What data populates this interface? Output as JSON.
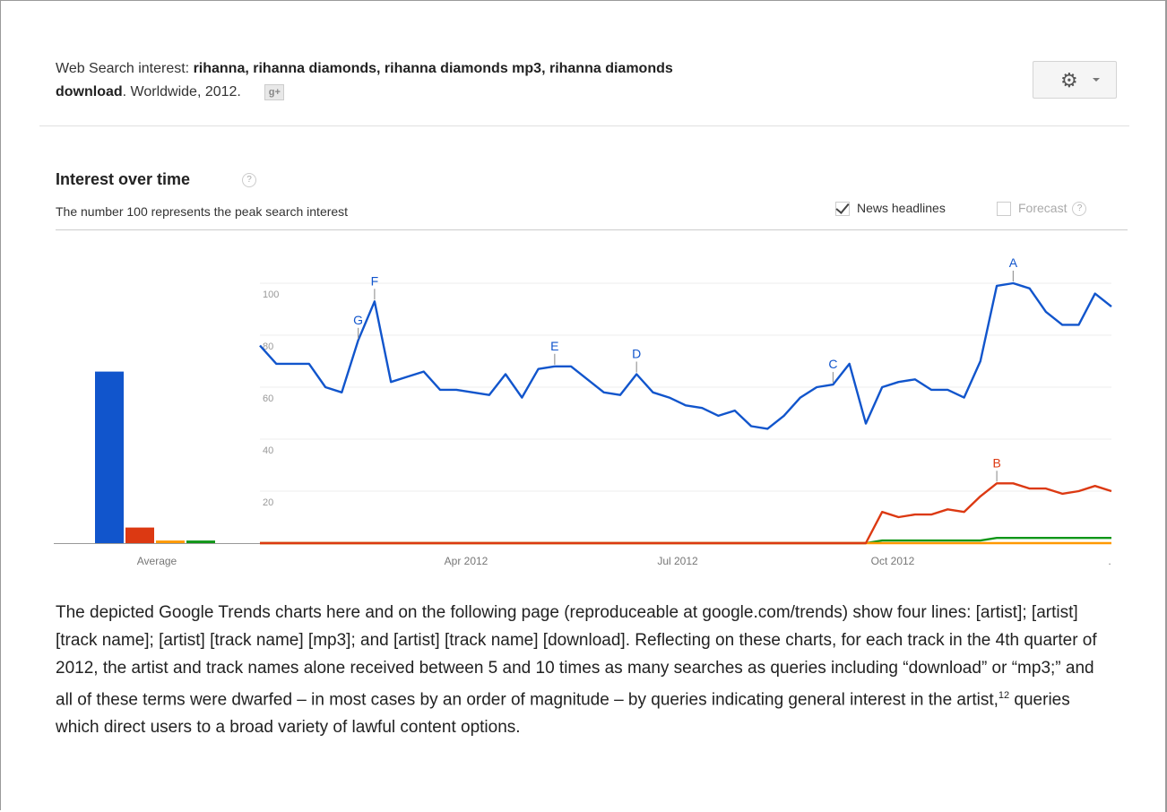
{
  "header": {
    "prefix": "Web Search interest: ",
    "terms": "rihanna, rihanna diamonds, rihanna diamonds mp3, rihanna diamonds",
    "terms2": "download",
    "suffix": ". Worldwide, 2012.",
    "gplus_icon": "g-plus-icon"
  },
  "settings_button": {
    "icon": "gear-icon"
  },
  "section": {
    "title": "Interest over time",
    "help": "?",
    "subtitle": "The number 100 represents the peak search interest"
  },
  "options": {
    "news_label": "News headlines",
    "news_checked": true,
    "forecast_label": "Forecast",
    "forecast_checked": false
  },
  "chart_data": {
    "type": "line",
    "ylim": [
      0,
      100
    ],
    "yticks": [
      "100",
      "80",
      "60",
      "40",
      "20"
    ],
    "xtick_labels": [
      "Average",
      "Apr 2012",
      "Jul 2012",
      "Oct 2012",
      "."
    ],
    "colors": [
      "#1155cc",
      "#dc3912",
      "#ff9900",
      "#109618"
    ],
    "averages": [
      66,
      6,
      1,
      1
    ],
    "series": [
      {
        "values": [
          76,
          69,
          69,
          69,
          60,
          58,
          78,
          93,
          62,
          64,
          66,
          59,
          59,
          58,
          57,
          65,
          56,
          67,
          68,
          68,
          63,
          58,
          57,
          65,
          58,
          56,
          53,
          52,
          49,
          51,
          45,
          44,
          49,
          56,
          60,
          61,
          69,
          46,
          60,
          62,
          63,
          59,
          59,
          56,
          70,
          99,
          100,
          98,
          89,
          84,
          84,
          96,
          91
        ]
      },
      {
        "values": [
          0,
          0,
          0,
          0,
          0,
          0,
          0,
          0,
          0,
          0,
          0,
          0,
          0,
          0,
          0,
          0,
          0,
          0,
          0,
          0,
          0,
          0,
          0,
          0,
          0,
          0,
          0,
          0,
          0,
          0,
          0,
          0,
          0,
          0,
          0,
          0,
          0,
          0,
          12,
          10,
          11,
          11,
          13,
          12,
          18,
          23,
          23,
          21,
          21,
          19,
          20,
          22,
          20
        ]
      },
      {
        "values": [
          0,
          0,
          0,
          0,
          0,
          0,
          0,
          0,
          0,
          0,
          0,
          0,
          0,
          0,
          0,
          0,
          0,
          0,
          0,
          0,
          0,
          0,
          0,
          0,
          0,
          0,
          0,
          0,
          0,
          0,
          0,
          0,
          0,
          0,
          0,
          0,
          0,
          0,
          0,
          0,
          0,
          0,
          0,
          0,
          0,
          0,
          0,
          0,
          0,
          0,
          0,
          0,
          0
        ]
      },
      {
        "values": [
          0,
          0,
          0,
          0,
          0,
          0,
          0,
          0,
          0,
          0,
          0,
          0,
          0,
          0,
          0,
          0,
          0,
          0,
          0,
          0,
          0,
          0,
          0,
          0,
          0,
          0,
          0,
          0,
          0,
          0,
          0,
          0,
          0,
          0,
          0,
          0,
          0,
          0,
          1,
          1,
          1,
          1,
          1,
          1,
          1,
          2,
          2,
          2,
          2,
          2,
          2,
          2,
          2
        ]
      }
    ],
    "annotations": [
      {
        "label": "G",
        "series": 0,
        "index": 6
      },
      {
        "label": "F",
        "series": 0,
        "index": 7
      },
      {
        "label": "E",
        "series": 0,
        "index": 18
      },
      {
        "label": "D",
        "series": 0,
        "index": 23
      },
      {
        "label": "C",
        "series": 0,
        "index": 35
      },
      {
        "label": "A",
        "series": 0,
        "index": 46
      },
      {
        "label": "B",
        "series": 1,
        "index": 45
      }
    ]
  },
  "caption": {
    "text1": "The depicted Google Trends charts here and on the following page (reproduceable at google.com/trends) show four lines: [artist]; [artist] [track name]; [artist] [track name] [mp3]; and [artist] [track name] [download]. Reflecting on these charts, for each track in the 4th quarter of 2012, the artist and track names alone received between 5 and 10 times as many searches as queries including “download” or “mp3;” and all of these terms were dwarfed – in most cases by an order of magnitude – by queries indicating general interest in the artist,",
    "footnote": "12",
    "text2": " queries which direct users to a broad variety of lawful content options."
  }
}
